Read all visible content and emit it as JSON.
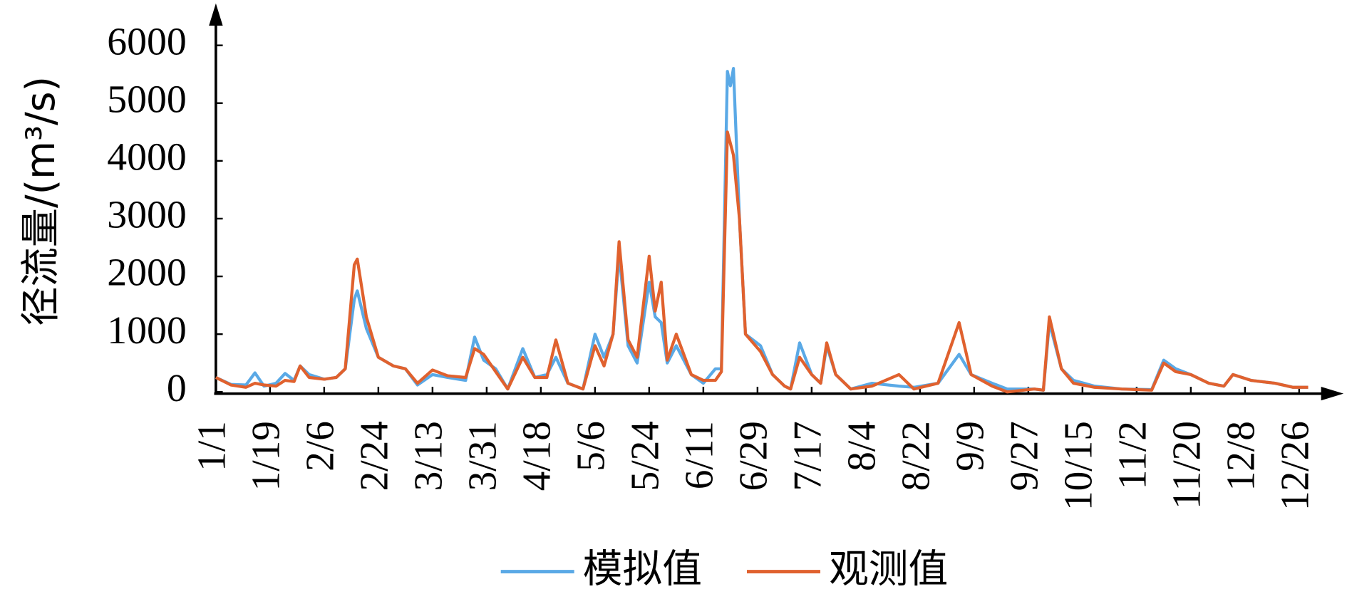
{
  "chart_data": {
    "type": "line",
    "ylabel": "径流量/(m³/s)",
    "x": [
      0,
      5,
      10,
      13,
      16,
      20,
      23,
      26,
      28,
      31,
      36,
      40,
      43,
      46,
      47,
      50,
      54,
      59,
      63,
      67,
      72,
      77,
      83,
      86,
      89,
      93,
      97,
      102,
      106,
      110,
      113,
      117,
      122,
      126,
      129,
      132,
      134,
      137,
      140,
      144,
      146,
      148,
      150,
      153,
      158,
      162,
      166,
      168,
      170,
      171,
      172,
      174,
      176,
      181,
      185,
      189,
      191,
      194,
      198,
      201,
      203,
      206,
      211,
      218,
      227,
      232,
      240,
      247,
      251,
      258,
      263,
      272,
      275,
      277,
      281,
      285,
      292,
      301,
      311,
      315,
      319,
      324,
      330,
      335,
      338,
      344,
      352,
      358,
      363
    ],
    "series": [
      {
        "name": "模拟值",
        "color": "#5aa9e6",
        "values": [
          250,
          130,
          120,
          330,
          100,
          150,
          320,
          200,
          450,
          300,
          220,
          250,
          400,
          1600,
          1750,
          1100,
          600,
          450,
          400,
          120,
          300,
          250,
          200,
          950,
          550,
          400,
          50,
          750,
          250,
          300,
          600,
          150,
          50,
          1000,
          600,
          1000,
          2400,
          800,
          500,
          1900,
          1300,
          1200,
          500,
          800,
          300,
          150,
          400,
          400,
          5550,
          5300,
          5600,
          3000,
          1000,
          800,
          300,
          100,
          50,
          850,
          300,
          150,
          800,
          300,
          50,
          150,
          100,
          80,
          150,
          650,
          300,
          150,
          50,
          50,
          30,
          1200,
          400,
          200,
          100,
          50,
          40,
          550,
          400,
          300,
          150,
          100,
          300,
          200,
          150,
          80,
          80
        ]
      },
      {
        "name": "观测值",
        "color": "#e0612e",
        "values": [
          250,
          120,
          80,
          150,
          120,
          100,
          200,
          180,
          450,
          250,
          220,
          250,
          400,
          2200,
          2300,
          1300,
          600,
          450,
          400,
          150,
          380,
          280,
          250,
          750,
          650,
          350,
          50,
          600,
          250,
          250,
          900,
          150,
          50,
          800,
          450,
          1000,
          2600,
          900,
          600,
          2350,
          1400,
          1900,
          550,
          1000,
          300,
          200,
          200,
          350,
          4500,
          4300,
          4100,
          3000,
          1000,
          700,
          300,
          100,
          50,
          600,
          300,
          150,
          850,
          300,
          50,
          100,
          300,
          50,
          150,
          1200,
          300,
          100,
          0,
          50,
          30,
          1300,
          400,
          150,
          80,
          50,
          30,
          500,
          350,
          300,
          150,
          100,
          300,
          200,
          150,
          80,
          80
        ]
      }
    ],
    "xlim": [
      0,
      365
    ],
    "xticks": [
      {
        "value": 0,
        "label": "1/1"
      },
      {
        "value": 18,
        "label": "1/19"
      },
      {
        "value": 36,
        "label": "2/6"
      },
      {
        "value": 54,
        "label": "2/24"
      },
      {
        "value": 72,
        "label": "3/13"
      },
      {
        "value": 90,
        "label": "3/31"
      },
      {
        "value": 108,
        "label": "4/18"
      },
      {
        "value": 126,
        "label": "5/6"
      },
      {
        "value": 144,
        "label": "5/24"
      },
      {
        "value": 162,
        "label": "6/11"
      },
      {
        "value": 180,
        "label": "6/29"
      },
      {
        "value": 198,
        "label": "7/17"
      },
      {
        "value": 216,
        "label": "8/4"
      },
      {
        "value": 234,
        "label": "8/22"
      },
      {
        "value": 252,
        "label": "9/9"
      },
      {
        "value": 270,
        "label": "9/27"
      },
      {
        "value": 288,
        "label": "10/15"
      },
      {
        "value": 306,
        "label": "11/2"
      },
      {
        "value": 324,
        "label": "11/20"
      },
      {
        "value": 342,
        "label": "12/8"
      },
      {
        "value": 360,
        "label": "12/26"
      }
    ],
    "ylim": [
      0,
      6000
    ],
    "yticks": [
      0,
      1000,
      2000,
      3000,
      4000,
      5000,
      6000
    ]
  }
}
